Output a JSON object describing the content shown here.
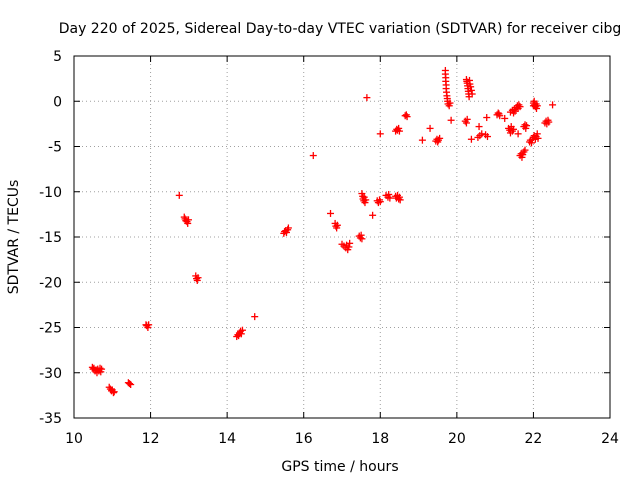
{
  "chart_data": {
    "type": "scatter",
    "title": "Day 220 of 2025, Sidereal Day-to-day VTEC variation (SDTVAR) for receiver cibg",
    "xlabel": "GPS time / hours",
    "ylabel": "SDTVAR / TECUs",
    "xlim": [
      10,
      24
    ],
    "ylim": [
      -35,
      5
    ],
    "xticks": [
      10,
      12,
      14,
      16,
      18,
      20,
      22,
      24
    ],
    "yticks": [
      5,
      0,
      -5,
      -10,
      -15,
      -20,
      -25,
      -30,
      -35
    ],
    "grid": true,
    "marker": "+",
    "color": "#ff0000",
    "series": [
      {
        "name": "SDTVAR",
        "points": [
          [
            10.48,
            -29.4
          ],
          [
            10.5,
            -29.6
          ],
          [
            10.52,
            -29.5
          ],
          [
            10.55,
            -29.8
          ],
          [
            10.58,
            -29.7
          ],
          [
            10.6,
            -30.0
          ],
          [
            10.62,
            -29.6
          ],
          [
            10.65,
            -29.8
          ],
          [
            10.68,
            -29.5
          ],
          [
            10.7,
            -29.9
          ],
          [
            10.72,
            -29.6
          ],
          [
            10.92,
            -31.6
          ],
          [
            10.95,
            -31.8
          ],
          [
            10.98,
            -32.0
          ],
          [
            11.0,
            -31.9
          ],
          [
            11.03,
            -32.2
          ],
          [
            11.05,
            -32.1
          ],
          [
            11.42,
            -31.1
          ],
          [
            11.45,
            -31.2
          ],
          [
            11.48,
            -31.3
          ],
          [
            11.88,
            -24.7
          ],
          [
            11.9,
            -24.8
          ],
          [
            11.93,
            -25.0
          ],
          [
            11.95,
            -24.7
          ],
          [
            12.75,
            -10.4
          ],
          [
            12.88,
            -12.8
          ],
          [
            12.9,
            -13.0
          ],
          [
            12.92,
            -13.2
          ],
          [
            12.95,
            -13.3
          ],
          [
            12.97,
            -13.5
          ],
          [
            12.99,
            -13.1
          ],
          [
            13.18,
            -19.3
          ],
          [
            13.2,
            -19.6
          ],
          [
            13.22,
            -19.8
          ],
          [
            13.24,
            -19.5
          ],
          [
            14.25,
            -26.0
          ],
          [
            14.28,
            -25.8
          ],
          [
            14.3,
            -25.9
          ],
          [
            14.32,
            -25.6
          ],
          [
            14.35,
            -25.4
          ],
          [
            14.37,
            -25.7
          ],
          [
            14.4,
            -25.3
          ],
          [
            14.72,
            -23.8
          ],
          [
            15.48,
            -14.6
          ],
          [
            15.5,
            -14.4
          ],
          [
            15.53,
            -14.3
          ],
          [
            15.55,
            -14.5
          ],
          [
            15.58,
            -14.2
          ],
          [
            15.6,
            -14.0
          ],
          [
            16.25,
            -6.0
          ],
          [
            16.7,
            -12.4
          ],
          [
            16.82,
            -13.5
          ],
          [
            16.84,
            -13.8
          ],
          [
            16.86,
            -14.0
          ],
          [
            16.88,
            -13.7
          ],
          [
            17.0,
            -15.8
          ],
          [
            17.05,
            -16.0
          ],
          [
            17.1,
            -16.2
          ],
          [
            17.12,
            -15.9
          ],
          [
            17.15,
            -16.4
          ],
          [
            17.18,
            -16.1
          ],
          [
            17.2,
            -15.7
          ],
          [
            17.45,
            -14.9
          ],
          [
            17.48,
            -15.1
          ],
          [
            17.5,
            -14.8
          ],
          [
            17.52,
            -15.2
          ],
          [
            17.52,
            -10.2
          ],
          [
            17.54,
            -10.5
          ],
          [
            17.55,
            -10.8
          ],
          [
            17.57,
            -11.0
          ],
          [
            17.58,
            -10.6
          ],
          [
            17.6,
            -11.2
          ],
          [
            17.62,
            -10.9
          ],
          [
            17.65,
            0.4
          ],
          [
            17.8,
            -12.6
          ],
          [
            17.92,
            -11.0
          ],
          [
            17.95,
            -11.2
          ],
          [
            17.98,
            -10.9
          ],
          [
            18.0,
            -11.1
          ],
          [
            18.0,
            -3.6
          ],
          [
            18.15,
            -10.4
          ],
          [
            18.2,
            -10.6
          ],
          [
            18.22,
            -10.3
          ],
          [
            18.25,
            -10.7
          ],
          [
            18.4,
            -10.5
          ],
          [
            18.42,
            -10.7
          ],
          [
            18.45,
            -10.4
          ],
          [
            18.48,
            -10.8
          ],
          [
            18.5,
            -10.6
          ],
          [
            18.52,
            -10.9
          ],
          [
            18.4,
            -3.3
          ],
          [
            18.43,
            -3.1
          ],
          [
            18.45,
            -3.2
          ],
          [
            18.48,
            -3.0
          ],
          [
            18.5,
            -3.3
          ],
          [
            18.65,
            -1.6
          ],
          [
            18.68,
            -1.5
          ],
          [
            18.7,
            -1.7
          ],
          [
            19.1,
            -4.3
          ],
          [
            19.3,
            -3.0
          ],
          [
            19.45,
            -4.4
          ],
          [
            19.48,
            -4.2
          ],
          [
            19.5,
            -4.5
          ],
          [
            19.52,
            -4.3
          ],
          [
            19.55,
            -4.1
          ],
          [
            19.7,
            3.4
          ],
          [
            19.7,
            3.0
          ],
          [
            19.71,
            2.6
          ],
          [
            19.71,
            2.2
          ],
          [
            19.72,
            1.8
          ],
          [
            19.72,
            1.4
          ],
          [
            19.73,
            1.0
          ],
          [
            19.74,
            0.6
          ],
          [
            19.75,
            0.3
          ],
          [
            19.76,
            0.0
          ],
          [
            19.77,
            -0.3
          ],
          [
            19.8,
            -0.5
          ],
          [
            19.82,
            -0.2
          ],
          [
            19.85,
            -2.1
          ],
          [
            20.22,
            -2.2
          ],
          [
            20.25,
            -2.4
          ],
          [
            20.27,
            -2.0
          ],
          [
            20.25,
            2.4
          ],
          [
            20.26,
            2.2
          ],
          [
            20.27,
            2.0
          ],
          [
            20.28,
            1.7
          ],
          [
            20.29,
            1.4
          ],
          [
            20.3,
            1.1
          ],
          [
            20.31,
            0.8
          ],
          [
            20.32,
            0.5
          ],
          [
            20.33,
            2.3
          ],
          [
            20.34,
            1.9
          ],
          [
            20.36,
            1.6
          ],
          [
            20.38,
            1.2
          ],
          [
            20.4,
            0.8
          ],
          [
            20.38,
            -4.2
          ],
          [
            20.55,
            -4.0
          ],
          [
            20.58,
            -2.8
          ],
          [
            20.6,
            -3.8
          ],
          [
            20.65,
            -3.6
          ],
          [
            20.75,
            -3.7
          ],
          [
            20.78,
            -1.8
          ],
          [
            20.8,
            -3.9
          ],
          [
            21.05,
            -1.5
          ],
          [
            21.08,
            -1.3
          ],
          [
            21.1,
            -1.4
          ],
          [
            21.12,
            -1.6
          ],
          [
            21.25,
            -1.9
          ],
          [
            21.35,
            -3.0
          ],
          [
            21.38,
            -3.2
          ],
          [
            21.4,
            -3.5
          ],
          [
            21.42,
            -2.8
          ],
          [
            21.45,
            -3.3
          ],
          [
            21.48,
            -3.1
          ],
          [
            21.4,
            -1.2
          ],
          [
            21.45,
            -1.0
          ],
          [
            21.48,
            -1.3
          ],
          [
            21.5,
            -0.9
          ],
          [
            21.52,
            -1.1
          ],
          [
            21.55,
            -0.7
          ],
          [
            21.58,
            -0.5
          ],
          [
            21.6,
            -0.8
          ],
          [
            21.62,
            -0.4
          ],
          [
            21.65,
            -0.6
          ],
          [
            21.6,
            -3.6
          ],
          [
            21.65,
            -6.0
          ],
          [
            21.68,
            -5.8
          ],
          [
            21.7,
            -6.2
          ],
          [
            21.72,
            -5.9
          ],
          [
            21.75,
            -5.6
          ],
          [
            21.78,
            -5.4
          ],
          [
            21.75,
            -2.8
          ],
          [
            21.78,
            -2.6
          ],
          [
            21.8,
            -3.0
          ],
          [
            21.82,
            -2.7
          ],
          [
            21.9,
            -4.5
          ],
          [
            21.92,
            -4.3
          ],
          [
            21.95,
            -4.6
          ],
          [
            21.97,
            -4.2
          ],
          [
            22.0,
            -0.2
          ],
          [
            22.0,
            -0.5
          ],
          [
            22.02,
            0.0
          ],
          [
            22.03,
            -0.4
          ],
          [
            22.05,
            -0.6
          ],
          [
            22.07,
            -0.3
          ],
          [
            22.08,
            -0.8
          ],
          [
            22.1,
            -0.5
          ],
          [
            22.0,
            -4.0
          ],
          [
            22.02,
            -3.8
          ],
          [
            22.05,
            -4.2
          ],
          [
            22.07,
            -3.9
          ],
          [
            22.1,
            -3.6
          ],
          [
            22.12,
            -4.1
          ],
          [
            22.3,
            -2.4
          ],
          [
            22.33,
            -2.2
          ],
          [
            22.35,
            -2.5
          ],
          [
            22.38,
            -2.1
          ],
          [
            22.4,
            -2.3
          ],
          [
            22.5,
            -0.4
          ]
        ]
      }
    ]
  }
}
